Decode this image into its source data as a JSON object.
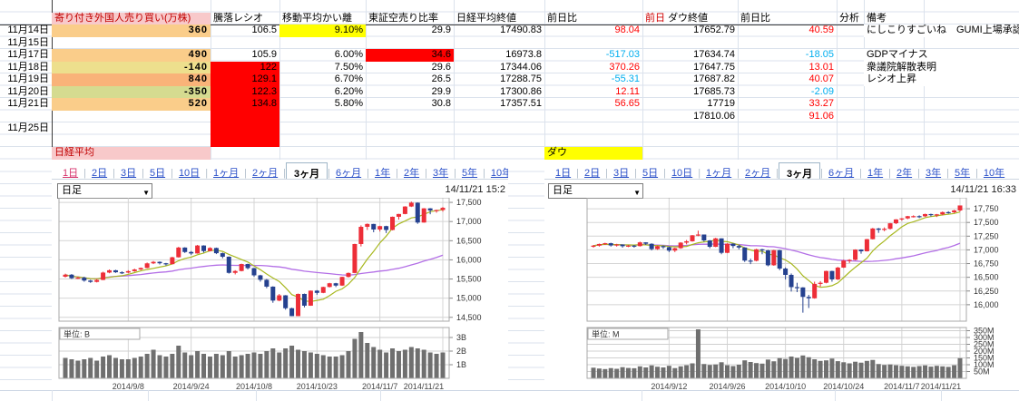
{
  "sheet": {
    "table": {
      "header": {
        "foreign": "寄り付き外国人売り買い(万株)",
        "ratio": "騰落レシオ",
        "madev": "移動平均かい離",
        "short_ratio": "東証空売り比率",
        "nikkei_close": "日経平均終値",
        "nikkei_chg": "前日比",
        "prev_label": "前日",
        "dow_close": "ダウ終値",
        "dow_chg": "前日比",
        "analysis": "分析",
        "remarks": "備考"
      },
      "rows": [
        {
          "date": "11月14日",
          "foreign": "360",
          "foreign_bg": "#FACD8A",
          "ratio": "106.5",
          "madev": "9.10%",
          "madev_bg": "#FFFF00",
          "short": "29.9",
          "close": "17490.83",
          "change": "98.04",
          "change_neg": false,
          "dow": "17652.79",
          "dow_change": "40.59",
          "dow_change_neg": false,
          "remark": "にしこりすごいね　GUMI上場承認"
        },
        {
          "date": "11月15日"
        },
        {
          "date": "11月17日",
          "foreign": "490",
          "foreign_bg": "#FACD8A",
          "ratio": "105.9",
          "madev": "6.00%",
          "short": "34.6",
          "short_bg": "#FF0000",
          "close": "16973.8",
          "change": "-517.03",
          "change_neg": true,
          "dow": "17634.74",
          "dow_change": "-18.05",
          "dow_change_neg": true,
          "remark": "GDPマイナス"
        },
        {
          "date": "11月18日",
          "foreign": "-140",
          "foreign_bg": "#EDDF8D",
          "ratio": "122",
          "madev": "7.50%",
          "short": "29.6",
          "close": "17344.06",
          "change": "370.26",
          "change_neg": false,
          "dow": "17647.75",
          "dow_change": "13.01",
          "dow_change_neg": false,
          "remark": "衆議院解散表明"
        },
        {
          "date": "11月19日",
          "foreign": "840",
          "foreign_bg": "#F9B379",
          "ratio": "129.1",
          "madev": "6.70%",
          "short": "26.5",
          "close": "17288.75",
          "change": "-55.31",
          "change_neg": true,
          "dow": "17687.82",
          "dow_change": "40.07",
          "dow_change_neg": false,
          "remark": "レシオ上昇"
        },
        {
          "date": "11月20日",
          "foreign": "-350",
          "foreign_bg": "#D5DB90",
          "ratio": "122.3",
          "madev": "6.20%",
          "short": "29.9",
          "close": "17300.86",
          "change": "12.11",
          "change_neg": false,
          "dow": "17685.73",
          "dow_change": "-2.09",
          "dow_change_neg": true
        },
        {
          "date": "11月21日",
          "foreign": "520",
          "foreign_bg": "#FACD8A",
          "ratio": "134.8",
          "madev": "5.80%",
          "short": "30.8",
          "close": "17357.51",
          "change": "56.65",
          "change_neg": false,
          "dow": "17719",
          "dow_change": "33.27",
          "dow_change_neg": false
        },
        {
          "date": "",
          "dow": "17810.06",
          "dow_change": "91.06",
          "dow_change_neg": false
        },
        {
          "date": "11月25日"
        },
        {
          "date": ""
        }
      ],
      "nikkei_label": "日経平均",
      "dow_label": "ダウ",
      "colors": {
        "header_bg": "#F8C9CA",
        "header_text": "#C00000",
        "red_block": "#FF0000",
        "yellow": "#FFFF00",
        "pos": "#FF0000",
        "neg": "#00AEEF"
      }
    }
  },
  "chart_data": [
    {
      "type": "candlestick",
      "name": "nikkei-3month-daily",
      "tabs": [
        "1日",
        "2日",
        "3日",
        "5日",
        "10日",
        "1ヶ月",
        "2ヶ月",
        "3ヶ月",
        "6ヶ月",
        "1年",
        "2年",
        "3年",
        "5年",
        "10年"
      ],
      "selected_tab": "3ヶ月",
      "first_tab_highlight": true,
      "dropdown_value": "日足",
      "timestamp": "14/11/21 15:2",
      "unit_label": "単位: B",
      "ymin": 14400,
      "ymax": 17620,
      "y_ticks": [
        17500,
        17000,
        16500,
        16000,
        15500,
        15000,
        14500
      ],
      "y_tick_labels": [
        "17,500",
        "17,000",
        "16,500",
        "16,000",
        "15,500",
        "15,000",
        "14,500"
      ],
      "x_tick_indices": [
        10,
        20,
        30,
        40,
        50,
        60
      ],
      "x_tick_labels": [
        "2014/9/8",
        "2014/9/24",
        "2014/10/8",
        "2014/10/23",
        "2014/11/7",
        "2014/11/21"
      ],
      "vol_ticks": [
        1,
        2,
        3
      ],
      "vol_tick_labels": [
        "1B",
        "2B",
        "3B"
      ],
      "vol_max": 3.6,
      "colors": {
        "up": "#ED2E38",
        "down": "#25418F",
        "ma_short": "#A8B820",
        "ma_long": "#B36FE6",
        "volume": "#6F6F6F"
      },
      "candles": [
        [
          15560,
          15640,
          15540,
          15613
        ],
        [
          15613,
          15630,
          15500,
          15521
        ],
        [
          15521,
          15560,
          15500,
          15534
        ],
        [
          15534,
          15560,
          15430,
          15460
        ],
        [
          15460,
          15480,
          15400,
          15425
        ],
        [
          15425,
          15500,
          15410,
          15476
        ],
        [
          15476,
          15690,
          15470,
          15668
        ],
        [
          15668,
          15750,
          15650,
          15728
        ],
        [
          15728,
          15740,
          15660,
          15676
        ],
        [
          15676,
          15700,
          15630,
          15668
        ],
        [
          15668,
          15730,
          15650,
          15705
        ],
        [
          15705,
          15770,
          15690,
          15749
        ],
        [
          15749,
          15800,
          15730,
          15788
        ],
        [
          15788,
          15930,
          15780,
          15909
        ],
        [
          15909,
          15970,
          15890,
          15948
        ],
        [
          15948,
          15960,
          15880,
          15911
        ],
        [
          15911,
          15920,
          15850,
          15888
        ],
        [
          15888,
          16080,
          15880,
          16067
        ],
        [
          16067,
          16340,
          16060,
          16321
        ],
        [
          16321,
          16330,
          16180,
          16205
        ],
        [
          16205,
          16230,
          16130,
          16167
        ],
        [
          16167,
          16390,
          16160,
          16374
        ],
        [
          16374,
          16380,
          16190,
          16230
        ],
        [
          16230,
          16330,
          16220,
          16310
        ],
        [
          16310,
          16320,
          16150,
          16174
        ],
        [
          16174,
          16190,
          16040,
          16082
        ],
        [
          16082,
          16090,
          15640,
          15661
        ],
        [
          15661,
          15730,
          15620,
          15709
        ],
        [
          15709,
          15900,
          15700,
          15891
        ],
        [
          15891,
          15900,
          15750,
          15784
        ],
        [
          15784,
          15790,
          15560,
          15596
        ],
        [
          15596,
          15610,
          15430,
          15479
        ],
        [
          15479,
          15500,
          15260,
          15301
        ],
        [
          15301,
          15310,
          14880,
          14937
        ],
        [
          14937,
          15110,
          14920,
          15074
        ],
        [
          15074,
          15080,
          14700,
          14738
        ],
        [
          14738,
          14750,
          14530,
          14532
        ],
        [
          14532,
          15120,
          14530,
          15111
        ],
        [
          15111,
          15120,
          14760,
          14804
        ],
        [
          14804,
          15200,
          14800,
          15196
        ],
        [
          15196,
          15210,
          15090,
          15139
        ],
        [
          15139,
          15300,
          15130,
          15292
        ],
        [
          15292,
          15400,
          15280,
          15389
        ],
        [
          15389,
          15400,
          15290,
          15329
        ],
        [
          15329,
          15560,
          15320,
          15554
        ],
        [
          15554,
          15670,
          15540,
          15658
        ],
        [
          15658,
          16420,
          15650,
          16413
        ],
        [
          16413,
          16900,
          16350,
          16862
        ],
        [
          16862,
          16950,
          16780,
          16937
        ],
        [
          16937,
          16940,
          16720,
          16792
        ],
        [
          16792,
          16890,
          16740,
          16880
        ],
        [
          16880,
          16890,
          16700,
          16780
        ],
        [
          16780,
          17130,
          16770,
          17124
        ],
        [
          17124,
          17200,
          17050,
          17197
        ],
        [
          17197,
          17400,
          17190,
          17392
        ],
        [
          17392,
          17520,
          17380,
          17491
        ],
        [
          17491,
          17500,
          16940,
          16974
        ],
        [
          16974,
          17350,
          16970,
          17344
        ],
        [
          17344,
          17350,
          17190,
          17289
        ],
        [
          17289,
          17310,
          17230,
          17301
        ],
        [
          17301,
          17380,
          17260,
          17358
        ]
      ],
      "volumes": [
        1.5,
        1.4,
        1.3,
        1.4,
        1.5,
        1.3,
        1.6,
        1.7,
        1.5,
        1.4,
        1.4,
        1.5,
        1.6,
        1.8,
        2.1,
        1.7,
        1.6,
        1.8,
        2.4,
        1.9,
        1.7,
        2.0,
        1.8,
        1.6,
        1.8,
        1.7,
        2.0,
        1.6,
        1.7,
        1.8,
        1.9,
        1.8,
        2.0,
        2.2,
        1.9,
        2.2,
        2.4,
        2.1,
        2.0,
        1.9,
        1.8,
        1.7,
        1.6,
        1.6,
        1.7,
        2.0,
        2.9,
        3.4,
        2.6,
        2.3,
        2.1,
        1.9,
        2.2,
        2.0,
        2.1,
        2.3,
        2.2,
        2.1,
        1.9,
        1.8,
        1.9
      ]
    },
    {
      "type": "candlestick",
      "name": "dow-3month-daily",
      "tabs": [
        "1日",
        "2日",
        "3日",
        "5日",
        "10日",
        "1ヶ月",
        "2ヶ月",
        "3ヶ月",
        "6ヶ月",
        "1年",
        "2年",
        "3年",
        "5年",
        "10年"
      ],
      "selected_tab": "3ヶ月",
      "first_tab_highlight": false,
      "dropdown_value": "日足",
      "timestamp": "14/11/21 16:33",
      "unit_label": "単位: M",
      "ymin": 15700,
      "ymax": 17950,
      "y_ticks": [
        17750,
        17500,
        17250,
        17000,
        16750,
        16500,
        16250,
        16000
      ],
      "y_tick_labels": [
        "17,750",
        "17,500",
        "17,250",
        "17,000",
        "16,750",
        "16,500",
        "16,250",
        "16,000"
      ],
      "x_tick_indices": [
        13,
        23,
        33,
        43,
        53,
        63
      ],
      "x_tick_labels": [
        "2014/9/12",
        "2014/9/26",
        "2014/10/10",
        "2014/10/24",
        "2014/11/7",
        "2014/11/21"
      ],
      "vol_ticks": [
        50,
        100,
        150,
        200,
        250,
        300,
        350
      ],
      "vol_tick_labels": [
        "50M",
        "100M",
        "150M",
        "200M",
        "250M",
        "300M",
        "350M"
      ],
      "vol_max": 360,
      "colors": {
        "up": "#ED2E38",
        "down": "#25418F",
        "ma_short": "#A8B820",
        "ma_long": "#B36FE6",
        "volume": "#6F6F6F"
      },
      "candles": [
        [
          17060,
          17090,
          17040,
          17077
        ],
        [
          17077,
          17115,
          17060,
          17107
        ],
        [
          17107,
          17130,
          17090,
          17122
        ],
        [
          17122,
          17130,
          17060,
          17080
        ],
        [
          17080,
          17110,
          17060,
          17098
        ],
        [
          17098,
          17100,
          17040,
          17067
        ],
        [
          17067,
          17090,
          17050,
          17078
        ],
        [
          17078,
          17090,
          17040,
          17069
        ],
        [
          17069,
          17150,
          17060,
          17137
        ],
        [
          17137,
          17140,
          17090,
          17111
        ],
        [
          17111,
          17120,
          16990,
          17014
        ],
        [
          17014,
          17080,
          17000,
          17068
        ],
        [
          17068,
          17080,
          17020,
          17049
        ],
        [
          17049,
          17060,
          16960,
          16987
        ],
        [
          16987,
          17040,
          16960,
          17031
        ],
        [
          17031,
          17140,
          17020,
          17132
        ],
        [
          17132,
          17180,
          17100,
          17157
        ],
        [
          17157,
          17270,
          17150,
          17266
        ],
        [
          17266,
          17350,
          17250,
          17280
        ],
        [
          17280,
          17280,
          17150,
          17172
        ],
        [
          17172,
          17180,
          17030,
          17056
        ],
        [
          17056,
          17220,
          17050,
          17210
        ],
        [
          17210,
          17210,
          16920,
          16946
        ],
        [
          16946,
          17120,
          16940,
          17113
        ],
        [
          17113,
          17120,
          17030,
          17071
        ],
        [
          17071,
          17090,
          17010,
          17043
        ],
        [
          17043,
          17050,
          16780,
          16805
        ],
        [
          16805,
          16840,
          16740,
          16801
        ],
        [
          16801,
          17020,
          16790,
          17010
        ],
        [
          17010,
          17020,
          16920,
          16991
        ],
        [
          16991,
          17000,
          16700,
          16719
        ],
        [
          16719,
          17000,
          16710,
          16994
        ],
        [
          16994,
          17000,
          16630,
          16659
        ],
        [
          16659,
          16680,
          16460,
          16544
        ],
        [
          16544,
          16570,
          16240,
          16321
        ],
        [
          16321,
          16400,
          16230,
          16315
        ],
        [
          16315,
          16320,
          15855,
          16142
        ],
        [
          16142,
          16180,
          15940,
          16117
        ],
        [
          16117,
          16420,
          16110,
          16380
        ],
        [
          16380,
          16430,
          16330,
          16400
        ],
        [
          16400,
          16620,
          16390,
          16615
        ],
        [
          16615,
          16620,
          16420,
          16461
        ],
        [
          16461,
          16690,
          16450,
          16677
        ],
        [
          16677,
          16820,
          16670,
          16805
        ],
        [
          16805,
          16830,
          16760,
          16818
        ],
        [
          16818,
          17010,
          16810,
          17005
        ],
        [
          17005,
          17010,
          16930,
          16974
        ],
        [
          16974,
          17200,
          16970,
          17195
        ],
        [
          17195,
          17400,
          17190,
          17390
        ],
        [
          17390,
          17400,
          17310,
          17366
        ],
        [
          17366,
          17410,
          17340,
          17384
        ],
        [
          17384,
          17490,
          17370,
          17485
        ],
        [
          17485,
          17560,
          17470,
          17555
        ],
        [
          17555,
          17580,
          17530,
          17574
        ],
        [
          17574,
          17620,
          17560,
          17614
        ],
        [
          17614,
          17630,
          17590,
          17615
        ],
        [
          17615,
          17630,
          17580,
          17612
        ],
        [
          17612,
          17660,
          17600,
          17653
        ],
        [
          17653,
          17660,
          17610,
          17635
        ],
        [
          17635,
          17655,
          17600,
          17648
        ],
        [
          17648,
          17700,
          17630,
          17688
        ],
        [
          17688,
          17705,
          17660,
          17686
        ],
        [
          17686,
          17730,
          17670,
          17719
        ],
        [
          17719,
          17810,
          17700,
          17810
        ]
      ],
      "volumes": [
        78,
        72,
        68,
        75,
        70,
        82,
        76,
        74,
        88,
        80,
        95,
        85,
        80,
        92,
        75,
        88,
        96,
        110,
        620,
        105,
        98,
        102,
        118,
        96,
        90,
        100,
        132,
        120,
        112,
        108,
        138,
        125,
        148,
        142,
        160,
        150,
        168,
        155,
        140,
        128,
        132,
        145,
        126,
        118,
        110,
        122,
        115,
        128,
        135,
        105,
        98,
        102,
        96,
        92,
        88,
        84,
        90,
        95,
        86,
        92,
        88,
        84,
        96,
        148
      ]
    }
  ]
}
